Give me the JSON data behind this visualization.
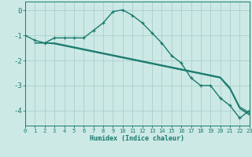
{
  "xlabel": "Humidex (Indice chaleur)",
  "ylabel": "",
  "background_color": "#cce9e5",
  "grid_color": "#aacfcb",
  "line_color": "#1a7a6e",
  "xlim": [
    0,
    23
  ],
  "ylim": [
    -4.6,
    0.35
  ],
  "xticks": [
    0,
    1,
    2,
    3,
    4,
    5,
    6,
    7,
    8,
    9,
    10,
    11,
    12,
    13,
    14,
    15,
    16,
    17,
    18,
    19,
    20,
    21,
    22,
    23
  ],
  "yticks": [
    0,
    -1,
    -2,
    -3,
    -4
  ],
  "curve1_x": [
    0,
    1,
    2,
    3,
    4,
    5,
    6,
    7,
    8,
    9,
    10,
    11,
    12,
    13,
    14,
    15,
    16,
    17,
    18,
    19,
    20,
    21,
    22,
    23
  ],
  "curve1_y": [
    -1.0,
    -1.2,
    -1.3,
    -1.1,
    -1.1,
    -1.1,
    -1.1,
    -0.8,
    -0.5,
    -0.05,
    0.02,
    -0.2,
    -0.5,
    -0.9,
    -1.3,
    -1.8,
    -2.1,
    -2.7,
    -3.0,
    -3.0,
    -3.5,
    -3.8,
    -4.3,
    -4.0
  ],
  "curve2_x": [
    1,
    2,
    3,
    4,
    5,
    6,
    7,
    8,
    9,
    10,
    11,
    12,
    13,
    14,
    15,
    16,
    17,
    18,
    19,
    20,
    21,
    22,
    23
  ],
  "curve2_y": [
    -1.3,
    -1.3,
    -1.3,
    -1.38,
    -1.46,
    -1.54,
    -1.62,
    -1.7,
    -1.78,
    -1.86,
    -1.94,
    -2.02,
    -2.1,
    -2.18,
    -2.26,
    -2.34,
    -2.42,
    -2.5,
    -2.58,
    -2.66,
    -3.08,
    -3.85,
    -4.08
  ],
  "curve3_x": [
    1,
    2,
    3,
    4,
    5,
    6,
    7,
    8,
    9,
    10,
    11,
    12,
    13,
    14,
    15,
    16,
    17,
    18,
    19,
    20,
    21,
    22,
    23
  ],
  "curve3_y": [
    -1.3,
    -1.3,
    -1.32,
    -1.4,
    -1.48,
    -1.56,
    -1.64,
    -1.72,
    -1.8,
    -1.88,
    -1.96,
    -2.04,
    -2.12,
    -2.2,
    -2.28,
    -2.36,
    -2.44,
    -2.52,
    -2.6,
    -2.68,
    -3.12,
    -3.9,
    -4.13
  ],
  "curve4_x": [
    1,
    2,
    3,
    4,
    5,
    6,
    7,
    8,
    9,
    10,
    11,
    12,
    13,
    14,
    15,
    16,
    17,
    18,
    19,
    20,
    21,
    22,
    23
  ],
  "curve4_y": [
    -1.3,
    -1.3,
    -1.34,
    -1.42,
    -1.5,
    -1.58,
    -1.66,
    -1.74,
    -1.82,
    -1.9,
    -1.98,
    -2.06,
    -2.14,
    -2.22,
    -2.3,
    -2.38,
    -2.46,
    -2.54,
    -2.62,
    -2.7,
    -3.15,
    -3.92,
    -4.18
  ]
}
